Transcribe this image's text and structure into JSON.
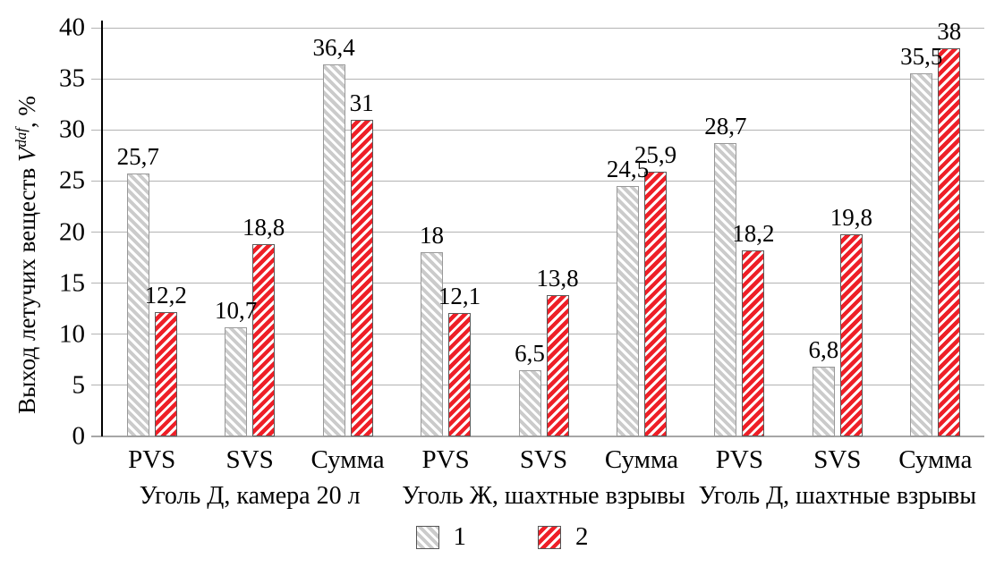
{
  "chart_data": {
    "type": "bar",
    "title": "",
    "ylabel": {
      "prefix": "Выход летучих веществ ",
      "var": "V",
      "sup": "daf",
      "suffix": ", %"
    },
    "ylim": [
      0,
      40
    ],
    "ytick_step": 5,
    "yticks": [
      0,
      5,
      10,
      15,
      20,
      25,
      30,
      35,
      40
    ],
    "grid": true,
    "categories": [
      "PVS",
      "SVS",
      "Сумма",
      "PVS",
      "SVS",
      "Сумма",
      "PVS",
      "SVS",
      "Сумма"
    ],
    "group_labels": [
      {
        "label": "Уголь Д, камера 20 л",
        "span": [
          0,
          2
        ]
      },
      {
        "label": "Уголь Ж, шахтные взрывы",
        "span": [
          3,
          5
        ]
      },
      {
        "label": "Уголь Д, шахтные взрывы",
        "span": [
          6,
          8
        ]
      }
    ],
    "series": [
      {
        "name": "1",
        "hatch": "backslash-diagonal",
        "stripe_color": "#cbcbcb",
        "border_color": "#999999",
        "values": [
          25.7,
          10.7,
          36.4,
          18,
          6.5,
          24.5,
          28.7,
          6.8,
          35.5
        ],
        "labels": [
          "25,7",
          "10,7",
          "36,4",
          "18",
          "6,5",
          "24,5",
          "28,7",
          "6,8",
          "35,5"
        ]
      },
      {
        "name": "2",
        "hatch": "slash-diagonal",
        "stripe_color": "#ee1f27",
        "border_color": "#5a5a5a",
        "values": [
          12.2,
          18.8,
          31,
          12.1,
          13.8,
          25.9,
          18.2,
          19.8,
          38
        ],
        "labels": [
          "12,2",
          "18,8",
          "31",
          "12,1",
          "13,8",
          "25,9",
          "18,2",
          "19,8",
          "38"
        ]
      }
    ],
    "legend": {
      "position": "bottom",
      "entries": [
        "1",
        "2"
      ]
    }
  },
  "colors": {
    "background": "#ffffff",
    "gridline": "#b3b3b3",
    "x_axis": "#a6a6a6",
    "y_axis": "#000000",
    "text": "#000000",
    "series1_stripe": "#cbcbcb",
    "series2_stripe": "#ee1f27"
  }
}
